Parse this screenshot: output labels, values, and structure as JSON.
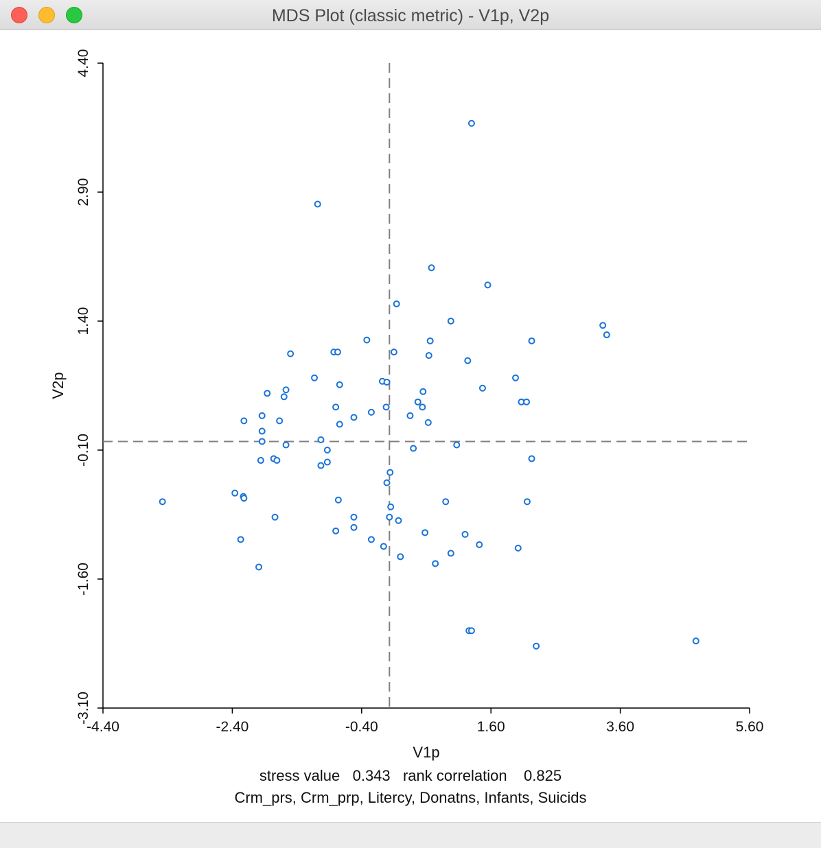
{
  "window": {
    "title": "MDS Plot (classic metric) - V1p, V2p"
  },
  "colors": {
    "point": "#1a73d9",
    "axis": "#000000",
    "reference_line": "#808080"
  },
  "chart_data": {
    "type": "scatter",
    "xlabel": "V1p",
    "ylabel": "V2p",
    "xlim": [
      -4.4,
      5.6
    ],
    "ylim": [
      -3.1,
      4.4
    ],
    "x_ticks": [
      -4.4,
      -2.4,
      -0.4,
      1.6,
      3.6,
      5.6
    ],
    "y_ticks": [
      -3.1,
      -1.6,
      -0.1,
      1.4,
      2.9,
      4.4
    ],
    "x_tick_labels": [
      "-4.40",
      "-2.40",
      "-0.40",
      "1.60",
      "3.60",
      "5.60"
    ],
    "y_tick_labels": [
      "-3.10",
      "-1.60",
      "-0.10",
      "1.40",
      "2.90",
      "4.40"
    ],
    "reference_lines": {
      "x": 0.03,
      "y": 0.0
    },
    "points": [
      {
        "x": 1.3,
        "y": 3.7
      },
      {
        "x": -1.08,
        "y": 2.76
      },
      {
        "x": 0.68,
        "y": 2.02
      },
      {
        "x": 1.55,
        "y": 1.82
      },
      {
        "x": 0.14,
        "y": 1.6
      },
      {
        "x": 0.98,
        "y": 1.4
      },
      {
        "x": 3.33,
        "y": 1.35
      },
      {
        "x": 3.39,
        "y": 1.24
      },
      {
        "x": -0.32,
        "y": 1.18
      },
      {
        "x": 0.66,
        "y": 1.17
      },
      {
        "x": 2.23,
        "y": 1.17
      },
      {
        "x": -1.5,
        "y": 1.02
      },
      {
        "x": -0.83,
        "y": 1.04
      },
      {
        "x": -0.77,
        "y": 1.04
      },
      {
        "x": 0.1,
        "y": 1.04
      },
      {
        "x": 0.64,
        "y": 1.0
      },
      {
        "x": 1.24,
        "y": 0.94
      },
      {
        "x": -1.13,
        "y": 0.74
      },
      {
        "x": -0.08,
        "y": 0.7
      },
      {
        "x": -0.01,
        "y": 0.69
      },
      {
        "x": 1.98,
        "y": 0.74
      },
      {
        "x": -0.74,
        "y": 0.66
      },
      {
        "x": 1.47,
        "y": 0.62
      },
      {
        "x": -1.57,
        "y": 0.6
      },
      {
        "x": -1.86,
        "y": 0.56
      },
      {
        "x": 0.55,
        "y": 0.58
      },
      {
        "x": -1.6,
        "y": 0.52
      },
      {
        "x": 0.47,
        "y": 0.46
      },
      {
        "x": 2.07,
        "y": 0.46
      },
      {
        "x": 2.15,
        "y": 0.46
      },
      {
        "x": -0.8,
        "y": 0.4
      },
      {
        "x": -0.02,
        "y": 0.4
      },
      {
        "x": 0.54,
        "y": 0.4
      },
      {
        "x": -0.25,
        "y": 0.34
      },
      {
        "x": 0.35,
        "y": 0.3
      },
      {
        "x": -0.52,
        "y": 0.28
      },
      {
        "x": -1.94,
        "y": 0.3
      },
      {
        "x": -2.22,
        "y": 0.24
      },
      {
        "x": -1.67,
        "y": 0.24
      },
      {
        "x": 0.63,
        "y": 0.22
      },
      {
        "x": -0.74,
        "y": 0.2
      },
      {
        "x": -1.94,
        "y": 0.12
      },
      {
        "x": -1.03,
        "y": 0.02
      },
      {
        "x": -1.94,
        "y": 0.0
      },
      {
        "x": -1.57,
        "y": -0.04
      },
      {
        "x": 0.4,
        "y": -0.08
      },
      {
        "x": 1.07,
        "y": -0.04
      },
      {
        "x": -0.93,
        "y": -0.1
      },
      {
        "x": -1.76,
        "y": -0.2
      },
      {
        "x": -1.71,
        "y": -0.22
      },
      {
        "x": -1.96,
        "y": -0.22
      },
      {
        "x": -0.93,
        "y": -0.24
      },
      {
        "x": -1.03,
        "y": -0.28
      },
      {
        "x": 2.23,
        "y": -0.2
      },
      {
        "x": 0.04,
        "y": -0.36
      },
      {
        "x": -0.01,
        "y": -0.48
      },
      {
        "x": -2.36,
        "y": -0.6
      },
      {
        "x": -2.23,
        "y": -0.64
      },
      {
        "x": -2.22,
        "y": -0.66
      },
      {
        "x": -3.48,
        "y": -0.7
      },
      {
        "x": -0.76,
        "y": -0.68
      },
      {
        "x": 0.05,
        "y": -0.76
      },
      {
        "x": 0.9,
        "y": -0.7
      },
      {
        "x": 2.16,
        "y": -0.7
      },
      {
        "x": -1.74,
        "y": -0.88
      },
      {
        "x": -0.52,
        "y": -0.88
      },
      {
        "x": 0.03,
        "y": -0.88
      },
      {
        "x": 0.17,
        "y": -0.92
      },
      {
        "x": -0.52,
        "y": -1.0
      },
      {
        "x": -0.8,
        "y": -1.04
      },
      {
        "x": 0.58,
        "y": -1.06
      },
      {
        "x": 1.2,
        "y": -1.08
      },
      {
        "x": -2.27,
        "y": -1.14
      },
      {
        "x": -0.25,
        "y": -1.14
      },
      {
        "x": 1.42,
        "y": -1.2
      },
      {
        "x": -0.06,
        "y": -1.22
      },
      {
        "x": 2.02,
        "y": -1.24
      },
      {
        "x": 0.98,
        "y": -1.3
      },
      {
        "x": 0.2,
        "y": -1.34
      },
      {
        "x": 0.74,
        "y": -1.42
      },
      {
        "x": -1.99,
        "y": -1.46
      },
      {
        "x": 1.26,
        "y": -2.2
      },
      {
        "x": 1.3,
        "y": -2.2
      },
      {
        "x": 2.3,
        "y": -2.38
      },
      {
        "x": 4.77,
        "y": -2.32
      }
    ]
  },
  "footer": {
    "stats": "stress value   0.343   rank correlation    0.825",
    "variables": "Crm_prs, Crm_prp, Litercy, Donatns, Infants, Suicids"
  }
}
